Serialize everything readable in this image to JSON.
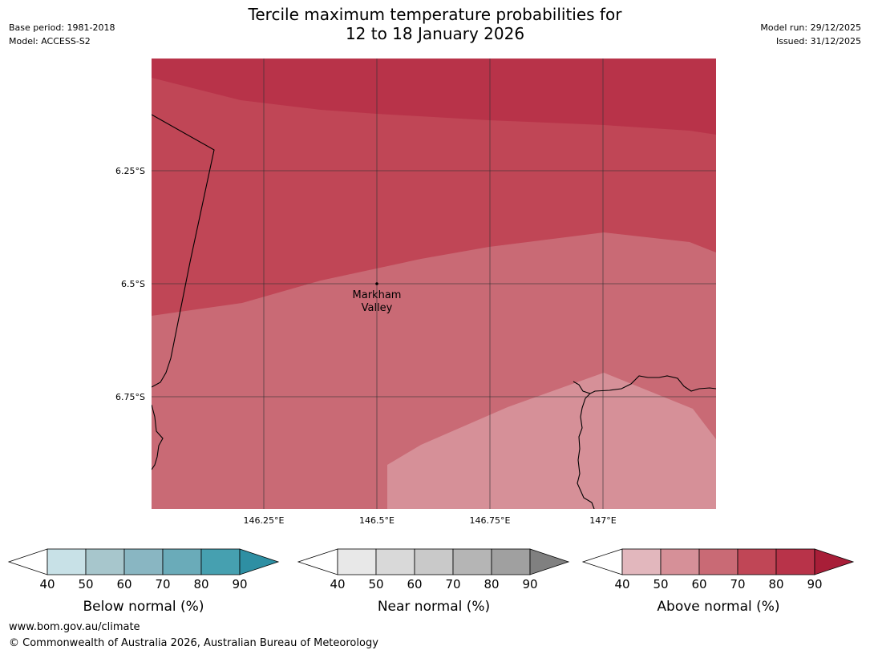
{
  "title": {
    "line1": "Tercile maximum temperature probabilities for",
    "line2": "12 to 18 January 2026"
  },
  "meta_left": {
    "base_period": "Base period: 1981-2018",
    "model": "Model: ACCESS-S2"
  },
  "meta_right": {
    "model_run": "Model run: 29/12/2025",
    "issued": "Issued: 31/12/2025"
  },
  "map": {
    "lat_labels": [
      "6.25°S",
      "6.5°S",
      "6.75°S"
    ],
    "lon_labels": [
      "146.25°E",
      "146.5°E",
      "146.75°E",
      "147°E"
    ],
    "place": {
      "line1": "Markham",
      "line2": "Valley"
    },
    "region_category": "Above normal (%)"
  },
  "colorbars": [
    {
      "label": "Below normal (%)",
      "ticks": [
        "40",
        "50",
        "60",
        "70",
        "80",
        "90"
      ],
      "colors": [
        "#ffffff",
        "#c8e1e7",
        "#a7c6cc",
        "#89b6c2",
        "#6aabb9",
        "#46a0b0",
        "#2e8fa3"
      ]
    },
    {
      "label": "Near normal (%)",
      "ticks": [
        "40",
        "50",
        "60",
        "70",
        "80",
        "90"
      ],
      "colors": [
        "#ffffff",
        "#e8e8e8",
        "#d9d9d9",
        "#c9c9c9",
        "#b5b5b5",
        "#a0a0a0",
        "#808080"
      ]
    },
    {
      "label": "Above normal (%)",
      "ticks": [
        "40",
        "50",
        "60",
        "70",
        "80",
        "90"
      ],
      "colors": [
        "#ffffff",
        "#e2b7bd",
        "#d69098",
        "#c96a75",
        "#c04656",
        "#b83349",
        "#a81e38"
      ]
    }
  ],
  "footer": {
    "url": "www.bom.gov.au/climate",
    "copyright": "© Commonwealth of Australia 2026, Australian Bureau of Meteorology"
  }
}
